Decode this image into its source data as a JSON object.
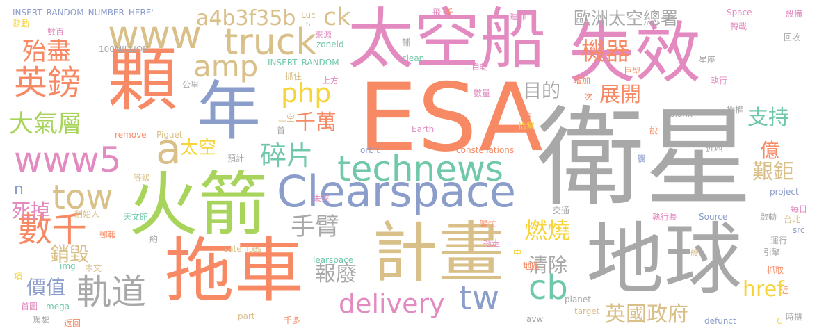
{
  "palette": {
    "gray": "#a8a8a8",
    "orange": "#f78a64",
    "pink": "#e38bc0",
    "blue": "#8b9dca",
    "green": "#a8d45c",
    "tan": "#d9bf88",
    "yellow": "#f7d43a",
    "teal": "#6fc8a8"
  },
  "words": [
    {
      "text": "衛星",
      "color": "gray"
    },
    {
      "text": "ESA",
      "color": "orange"
    },
    {
      "text": "地球",
      "color": "gray"
    },
    {
      "text": "太空船",
      "color": "pink"
    },
    {
      "text": "顆",
      "color": "orange"
    },
    {
      "text": "火箭",
      "color": "green"
    },
    {
      "text": "拖車",
      "color": "orange"
    },
    {
      "text": "失效",
      "color": "pink"
    },
    {
      "text": "計畫",
      "color": "tan"
    },
    {
      "text": "年",
      "color": "blue"
    },
    {
      "text": "Clearspace",
      "color": "blue"
    },
    {
      "text": "technews",
      "color": "teal"
    },
    {
      "text": "www",
      "color": "tan"
    },
    {
      "text": "truck",
      "color": "tan"
    },
    {
      "text": "www5",
      "color": "pink"
    },
    {
      "text": "tow",
      "color": "tan"
    },
    {
      "text": "英鎊",
      "color": "orange"
    },
    {
      "text": "數千",
      "color": "orange"
    },
    {
      "text": "軌道",
      "color": "gray"
    },
    {
      "text": "delivery",
      "color": "pink"
    },
    {
      "text": "tw",
      "color": "blue"
    },
    {
      "text": "cb",
      "color": "teal"
    },
    {
      "text": "a4b3f35b",
      "color": "tan"
    },
    {
      "text": "amp",
      "color": "tan"
    },
    {
      "text": "php",
      "color": "yellow"
    },
    {
      "text": "殆盡",
      "color": "orange"
    },
    {
      "text": "大氣層",
      "color": "green"
    },
    {
      "text": "a",
      "color": "tan"
    },
    {
      "text": "ck",
      "color": "tan"
    },
    {
      "text": "機器",
      "color": "orange"
    },
    {
      "text": "歐洲太空總署",
      "color": "gray"
    },
    {
      "text": "目的",
      "color": "gray"
    },
    {
      "text": "展開",
      "color": "orange"
    },
    {
      "text": "支持",
      "color": "teal"
    },
    {
      "text": "手臂",
      "color": "gray"
    },
    {
      "text": "燃燒",
      "color": "yellow"
    },
    {
      "text": "碎片",
      "color": "teal"
    },
    {
      "text": "千萬",
      "color": "orange"
    },
    {
      "text": "太空",
      "color": "yellow"
    },
    {
      "text": "艱鉅",
      "color": "tan"
    },
    {
      "text": "億",
      "color": "orange"
    },
    {
      "text": "清除",
      "color": "gray"
    },
    {
      "text": "報廢",
      "color": "gray"
    },
    {
      "text": "銷毀",
      "color": "tan"
    },
    {
      "text": "價值",
      "color": "blue"
    },
    {
      "text": "死掉",
      "color": "pink"
    },
    {
      "text": "英國政府",
      "color": "tan"
    },
    {
      "text": "href",
      "color": "yellow"
    },
    {
      "text": "n",
      "color": "blue"
    },
    {
      "text": "INSERT_RANDOM_NUMBER_HERE'",
      "color": "blue"
    },
    {
      "text": "100MILLION",
      "color": "gray"
    },
    {
      "text": "INSERT_RANDOM",
      "color": "teal"
    },
    {
      "text": "Luc",
      "color": "tan"
    },
    {
      "text": "s",
      "color": "blue"
    },
    {
      "text": "飛回",
      "color": "pink"
    },
    {
      "text": "運作",
      "color": "pink"
    },
    {
      "text": "千",
      "color": "orange"
    },
    {
      "text": "Space",
      "color": "pink"
    },
    {
      "text": "設備",
      "color": "pink"
    },
    {
      "text": "發動",
      "color": "yellow"
    },
    {
      "text": "數百",
      "color": "pink"
    },
    {
      "text": "來源",
      "color": "pink"
    },
    {
      "text": "zoneid",
      "color": "teal"
    },
    {
      "text": "輔",
      "color": "gray"
    },
    {
      "text": "轉載",
      "color": "pink"
    },
    {
      "text": "星座",
      "color": "gray"
    },
    {
      "text": "回收",
      "color": "gray"
    },
    {
      "text": "抓住",
      "color": "tan"
    },
    {
      "text": "clean",
      "color": "teal"
    },
    {
      "text": "自動",
      "color": "pink"
    },
    {
      "text": "上方",
      "color": "pink"
    },
    {
      "text": "巨型",
      "color": "orange"
    },
    {
      "text": "增加",
      "color": "orange"
    },
    {
      "text": "公里",
      "color": "gray"
    },
    {
      "text": "執行",
      "color": "pink"
    },
    {
      "text": "數量",
      "color": "pink"
    },
    {
      "text": "次",
      "color": "orange"
    },
    {
      "text": "_blank'",
      "color": "gray"
    },
    {
      "text": "授權",
      "color": "gray"
    },
    {
      "text": "上空",
      "color": "tan"
    },
    {
      "text": "首",
      "color": "gray"
    },
    {
      "text": "兼",
      "color": "orange"
    },
    {
      "text": "恰當",
      "color": "yellow"
    },
    {
      "text": "remove",
      "color": "orange"
    },
    {
      "text": "Piguet",
      "color": "tan"
    },
    {
      "text": "Earth",
      "color": "pink"
    },
    {
      "text": "說",
      "color": "orange"
    },
    {
      "text": "orbit",
      "color": "blue"
    },
    {
      "text": "constellations",
      "color": "orange"
    },
    {
      "text": "預計",
      "color": "gray"
    },
    {
      "text": "近地",
      "color": "gray"
    },
    {
      "text": "飄",
      "color": "blue"
    },
    {
      "text": "等級",
      "color": "tan"
    },
    {
      "text": "未來",
      "color": "pink"
    },
    {
      "text": "project",
      "color": "blue"
    },
    {
      "text": "創始人",
      "color": "tan"
    },
    {
      "text": "天文館",
      "color": "teal"
    },
    {
      "text": "交通",
      "color": "gray"
    },
    {
      "text": "每日",
      "color": "pink"
    },
    {
      "text": "郵報",
      "color": "orange"
    },
    {
      "text": "繁忙",
      "color": "orange"
    },
    {
      "text": "執行長",
      "color": "pink"
    },
    {
      "text": "Source",
      "color": "blue"
    },
    {
      "text": "啟動",
      "color": "gray"
    },
    {
      "text": "台北",
      "color": "tan"
    },
    {
      "text": "src",
      "color": "blue"
    },
    {
      "text": "約",
      "color": "gray"
    },
    {
      "text": "satellites",
      "color": "tan"
    },
    {
      "text": "拖走",
      "color": "pink"
    },
    {
      "text": "learspace",
      "color": "teal"
    },
    {
      "text": "運行",
      "color": "gray"
    },
    {
      "text": "引擎",
      "color": "gray"
    },
    {
      "text": "中",
      "color": "yellow"
    },
    {
      "text": "艘",
      "color": "tan"
    },
    {
      "text": "img",
      "color": "teal"
    },
    {
      "text": "本文",
      "color": "tan"
    },
    {
      "text": "地區",
      "color": "orange"
    },
    {
      "text": "抓取",
      "color": "orange"
    },
    {
      "text": "項",
      "color": "yellow"
    },
    {
      "text": "近",
      "color": "orange"
    },
    {
      "text": "首圖",
      "color": "pink"
    },
    {
      "text": "mega",
      "color": "teal"
    },
    {
      "text": "planet",
      "color": "gray"
    },
    {
      "text": "target",
      "color": "tan"
    },
    {
      "text": "駕駛",
      "color": "gray"
    },
    {
      "text": "返回",
      "color": "orange"
    },
    {
      "text": "part",
      "color": "tan"
    },
    {
      "text": "千多",
      "color": "orange"
    },
    {
      "text": "avw",
      "color": "gray"
    },
    {
      "text": "defunct",
      "color": "blue"
    },
    {
      "text": "C",
      "color": "yellow"
    },
    {
      "text": "時機",
      "color": "gray"
    }
  ]
}
